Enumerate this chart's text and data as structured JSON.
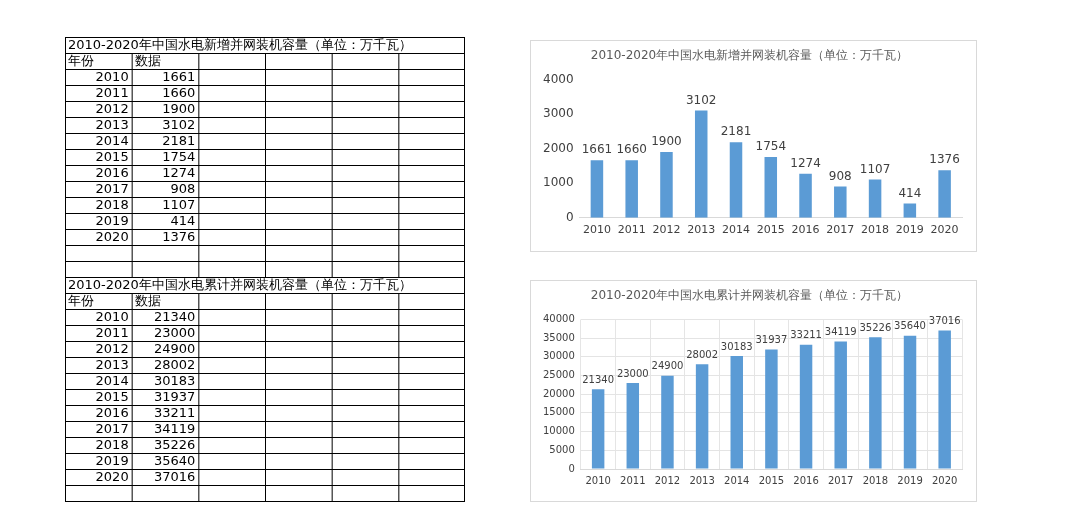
{
  "chart_data": [
    {
      "type": "heatmap",
      "title": "2010-2020年中国水电新增并网装机容量（单位：万千瓦）",
      "ylabel": "年份",
      "categories": [
        "数据"
      ],
      "y_categories": [
        "2010",
        "2011",
        "2012",
        "2013",
        "2014",
        "2015",
        "2016",
        "2017",
        "2018",
        "2019",
        "2020"
      ],
      "cells": [
        [
          1661
        ],
        [
          1660
        ],
        [
          1900
        ],
        [
          3102
        ],
        [
          2181
        ],
        [
          1754
        ],
        [
          1274
        ],
        [
          908
        ],
        [
          1107
        ],
        [
          414
        ],
        [
          1376
        ]
      ],
      "data_labels": true
    },
    {
      "type": "bar",
      "title": "2010-2020年中国水电新增并网装机容量（单位：万千瓦）",
      "categories": [
        "2010",
        "2011",
        "2012",
        "2013",
        "2014",
        "2015",
        "2016",
        "2017",
        "2018",
        "2019",
        "2020"
      ],
      "values": [
        1661,
        1660,
        1900,
        3102,
        2181,
        1754,
        1274,
        908,
        1107,
        414,
        1376
      ],
      "color": "#5b9bd5",
      "ylim": [
        0,
        4000
      ],
      "yticks": [
        0,
        1000,
        2000,
        3000,
        4000
      ],
      "grid": false,
      "data_labels": true
    },
    {
      "type": "heatmap",
      "title": "2010-2020年中国水电累计并网装机容量（单位：万千瓦）",
      "ylabel": "年份",
      "categories": [
        "数据"
      ],
      "y_categories": [
        "2010",
        "2011",
        "2012",
        "2013",
        "2014",
        "2015",
        "2016",
        "2017",
        "2018",
        "2019",
        "2020"
      ],
      "cells": [
        [
          21340
        ],
        [
          23000
        ],
        [
          24900
        ],
        [
          28002
        ],
        [
          30183
        ],
        [
          31937
        ],
        [
          33211
        ],
        [
          34119
        ],
        [
          35226
        ],
        [
          35640
        ],
        [
          37016
        ]
      ],
      "data_labels": true
    },
    {
      "type": "bar",
      "title": "2010-2020年中国水电累计并网装机容量（单位：万千瓦）",
      "categories": [
        "2010",
        "2011",
        "2012",
        "2013",
        "2014",
        "2015",
        "2016",
        "2017",
        "2018",
        "2019",
        "2020"
      ],
      "values": [
        21340,
        23000,
        24900,
        28002,
        30183,
        31937,
        33211,
        34119,
        35226,
        35640,
        37016
      ],
      "color": "#5b9bd5",
      "ylim": [
        0,
        40000
      ],
      "yticks": [
        0,
        5000,
        10000,
        15000,
        20000,
        25000,
        30000,
        35000,
        40000
      ],
      "grid": true,
      "data_labels": true
    }
  ]
}
